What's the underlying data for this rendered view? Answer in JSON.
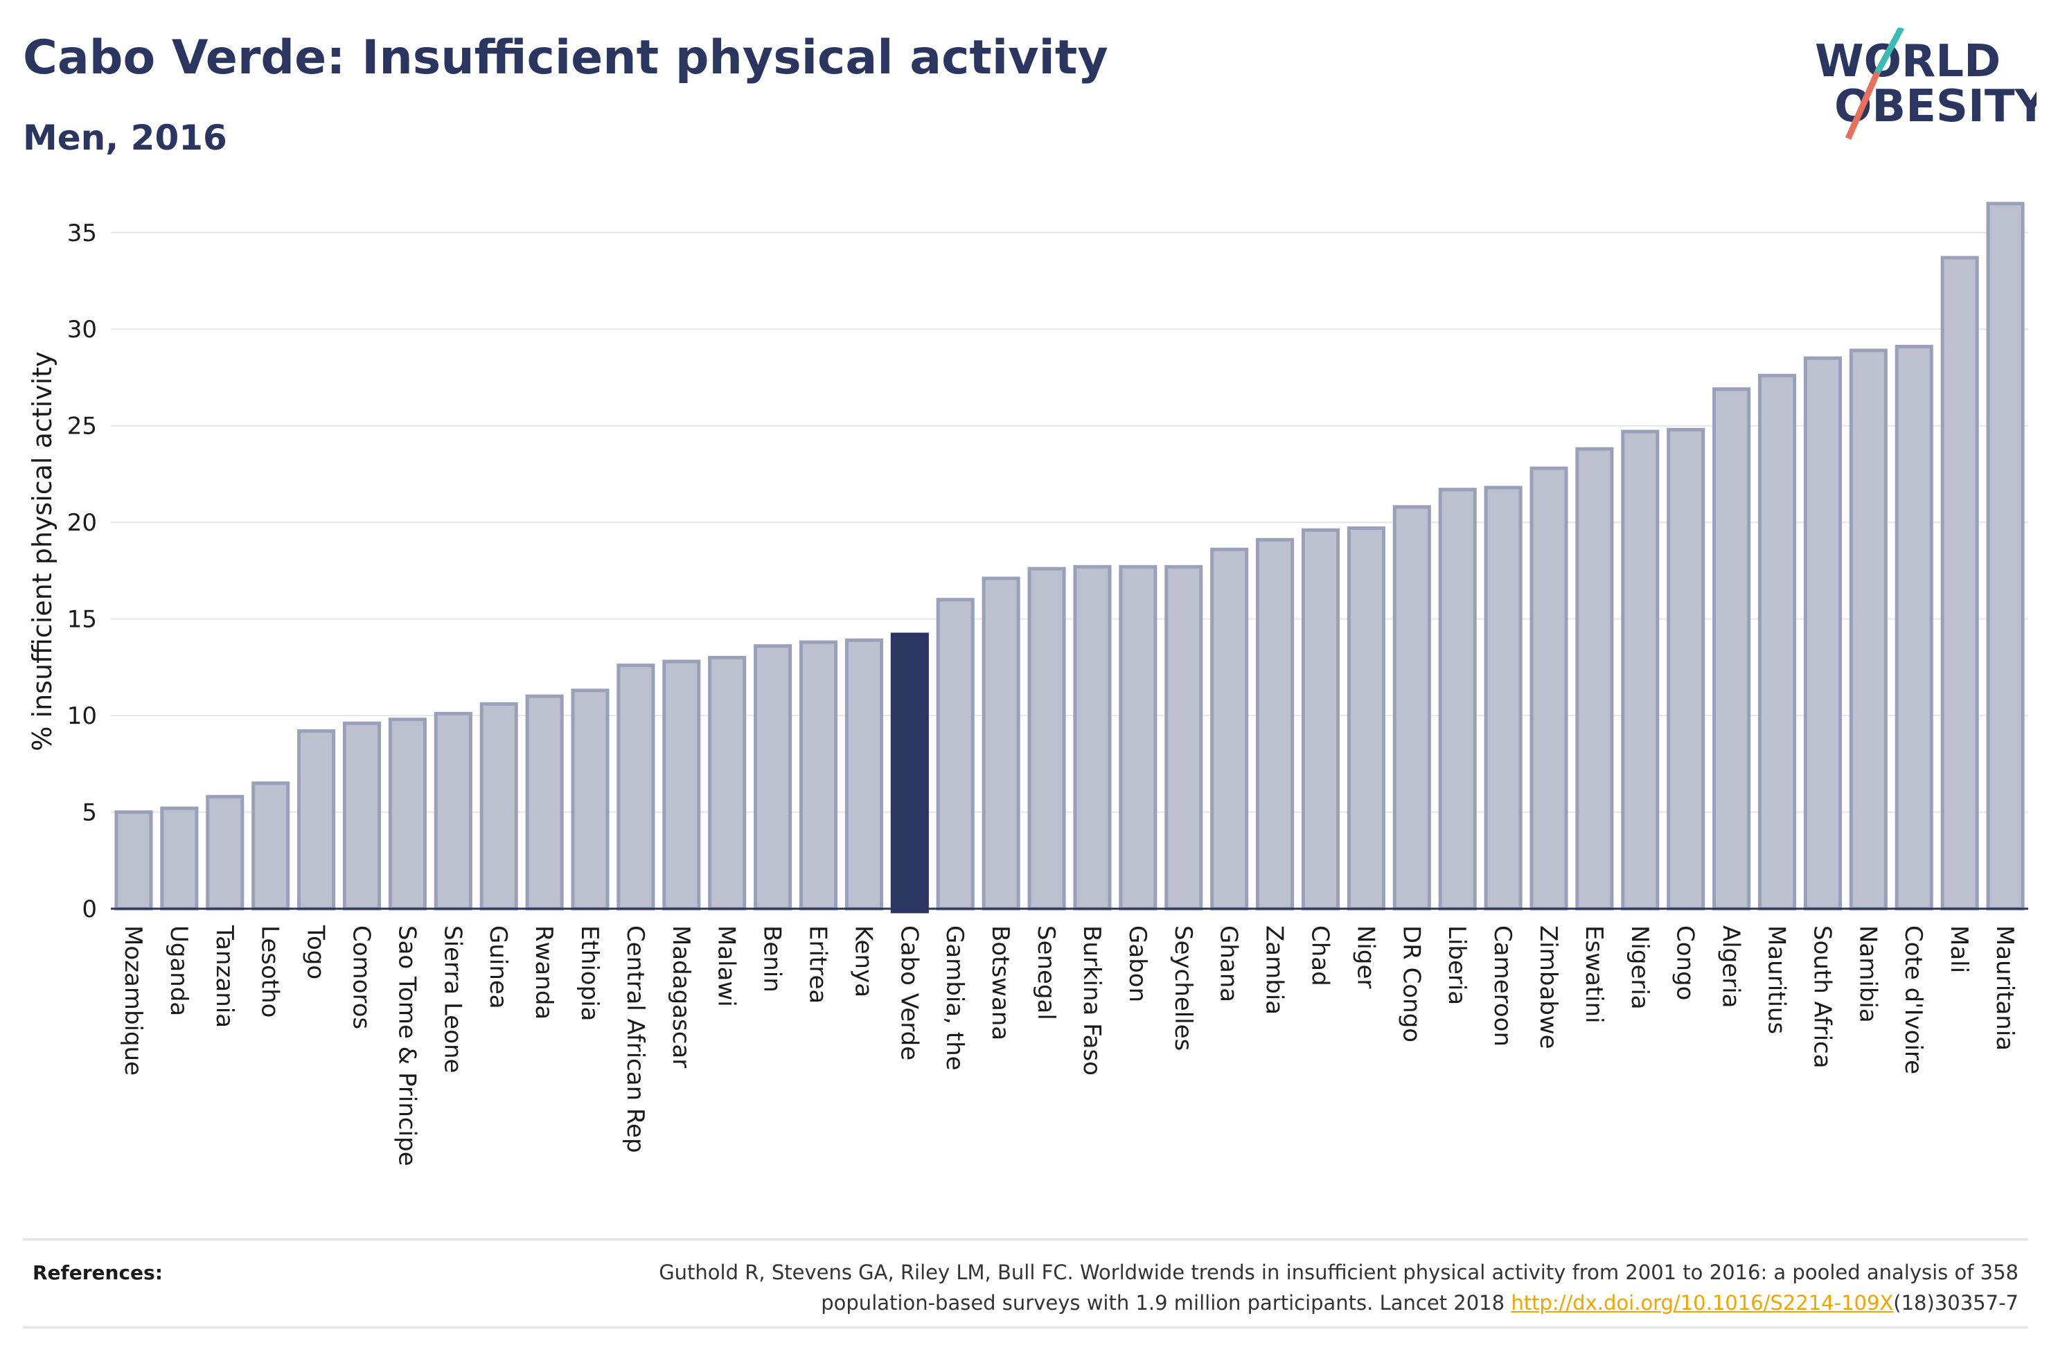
{
  "title": "Cabo Verde: Insufficient physical activity",
  "subtitle": "Men, 2016",
  "logo": {
    "line1": "WORLD",
    "line2": "OBESITY"
  },
  "colors": {
    "highlight": "#2a3660",
    "bar_fill": "#bcc0cf",
    "bar_stroke": "#9aa0b8",
    "title": "#2a3660",
    "link": "#f0a500"
  },
  "chart_data": {
    "type": "bar",
    "ylabel": "% insufficient physical activity",
    "xlabel": "",
    "ylim": [
      0,
      37
    ],
    "yticks": [
      0,
      5,
      10,
      15,
      20,
      25,
      30,
      35
    ],
    "grid": true,
    "highlight": "Cabo Verde",
    "categories": [
      "Mozambique",
      "Uganda",
      "Tanzania",
      "Lesotho",
      "Togo",
      "Comoros",
      "Sao Tome & Principe",
      "Sierra Leone",
      "Guinea",
      "Rwanda",
      "Ethiopia",
      "Central African Rep",
      "Madagascar",
      "Malawi",
      "Benin",
      "Eritrea",
      "Kenya",
      "Cabo Verde",
      "Gambia, the",
      "Botswana",
      "Senegal",
      "Burkina Faso",
      "Gabon",
      "Seychelles",
      "Ghana",
      "Zambia",
      "Chad",
      "Niger",
      "DR Congo",
      "Liberia",
      "Cameroon",
      "Zimbabwe",
      "Eswatini",
      "Nigeria",
      "Congo",
      "Algeria",
      "Mauritius",
      "South Africa",
      "Namibia",
      "Cote d'Ivoire",
      "Mali",
      "Mauritania"
    ],
    "values": [
      5.0,
      5.2,
      5.8,
      6.5,
      9.2,
      9.6,
      9.8,
      10.1,
      10.6,
      11.0,
      11.3,
      12.6,
      12.8,
      13.0,
      13.6,
      13.8,
      13.9,
      14.2,
      16.0,
      17.1,
      17.6,
      17.7,
      17.7,
      17.7,
      18.6,
      19.1,
      19.6,
      19.7,
      20.8,
      21.7,
      21.8,
      22.8,
      23.8,
      24.7,
      24.8,
      26.9,
      27.6,
      28.5,
      28.9,
      29.1,
      33.7,
      36.5
    ]
  },
  "references": {
    "label": "References:",
    "line1": "Guthold R, Stevens GA, Riley LM, Bull FC. Worldwide trends in insufficient physical activity from 2001 to 2016: a pooled analysis of 358",
    "line2_prefix": "population-based surveys with 1.9 million participants. Lancet 2018 ",
    "link": "http://dx.doi.org/10.1016/S2214-109X",
    "line2_suffix": "(18)30357-7"
  }
}
